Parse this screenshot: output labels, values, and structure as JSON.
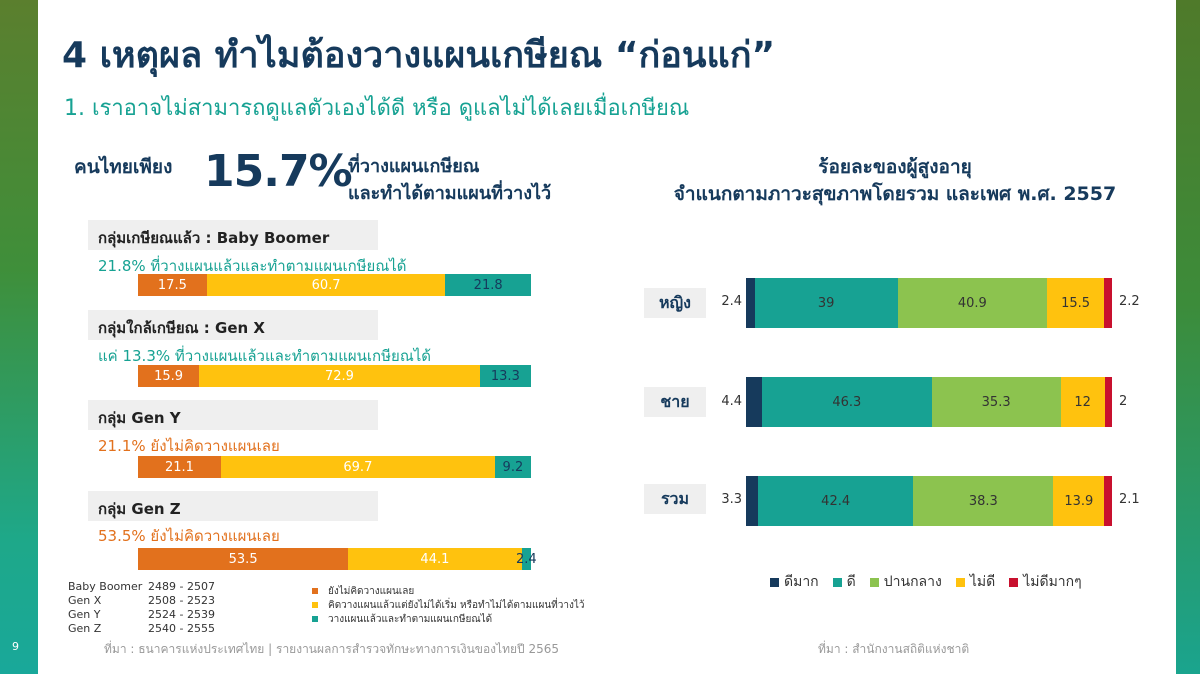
{
  "page_number": "9",
  "title": "4 เหตุผล ทำไมต้องวางแผนเกษียณ “ก่อนแก่”",
  "subtitle": "1. เราอาจไม่สามารถดูแลตัวเองได้ดี หรือ ดูแลไม่ได้เลยเมื่อเกษียณ",
  "stat": {
    "prefix": "คนไทยเพียง",
    "value": "15.7%",
    "line1": "ที่วางแผนเกษียณ",
    "line2": "และทำได้ตามแผนที่วางไว้"
  },
  "colors": {
    "orange": "#e2711d",
    "yellow": "#ffc20e",
    "teal": "#17a293",
    "dark_navy": "#163a5c",
    "green": "#8cc34f",
    "red": "#c8102e"
  },
  "left_chart": {
    "groups": [
      {
        "label": "กลุ่มเกษียณแล้ว : Baby Boomer",
        "note": "21.8% ที่วางแผนแล้วและทำตามแผนเกษียณได้",
        "note_color": "#17a293",
        "values": [
          17.5,
          60.7,
          21.8
        ],
        "labels": [
          "17.5",
          "60.7",
          "21.8"
        ]
      },
      {
        "label": "กลุ่มใกล้เกษียณ : Gen X",
        "note": "แค่ 13.3% ที่วางแผนแล้วและทำตามแผนเกษียณได้",
        "note_color": "#17a293",
        "values": [
          15.9,
          72.9,
          13.3
        ],
        "labels": [
          "15.9",
          "72.9",
          "13.3"
        ]
      },
      {
        "label": "กลุ่ม Gen Y",
        "note": "21.1% ยังไม่คิดวางแผนเลย",
        "note_color": "#e2711d",
        "values": [
          21.1,
          69.7,
          9.2
        ],
        "labels": [
          "21.1",
          "69.7",
          "9.2"
        ]
      },
      {
        "label": "กลุ่ม Gen Z",
        "note": "53.5% ยังไม่คิดวางแผนเลย",
        "note_color": "#e2711d",
        "values": [
          53.5,
          44.1,
          2.4
        ],
        "labels": [
          "53.5",
          "44.1",
          "2.4"
        ]
      }
    ],
    "legend": [
      "ยังไม่คิดวางแผนเลย",
      "คิดวางแผนแล้วแต่ยังไม่ได้เริ่ม หรือทำไม่ได้ตามแผนที่วางไว้",
      "วางแผนแล้วและทำตามแผนเกษียณได้"
    ],
    "generations": [
      {
        "name": "Baby Boomer",
        "years": "2489 - 2507"
      },
      {
        "name": "Gen X",
        "years": "2508 - 2523"
      },
      {
        "name": "Gen Y",
        "years": "2524 - 2539"
      },
      {
        "name": "Gen Z",
        "years": "2540 - 2555"
      }
    ],
    "source": "ที่มา : ธนาคารแห่งประเทศไทย | รายงานผลการสำรวจทักษะทางการเงินของไทยปี 2565"
  },
  "right_chart": {
    "title_line1": "ร้อยละของผู้สูงอายุ",
    "title_line2": "จำแนกตามภาวะสุขภาพโดยรวม และเพศ พ.ศ. 2557",
    "rows": [
      {
        "category": "หญิง",
        "values": [
          2.4,
          39,
          40.9,
          15.5,
          2.2
        ],
        "labels": [
          "2.4",
          "39",
          "40.9",
          "15.5",
          "2.2"
        ]
      },
      {
        "category": "ชาย",
        "values": [
          4.4,
          46.3,
          35.3,
          12,
          2
        ],
        "labels": [
          "4.4",
          "46.3",
          "35.3",
          "12",
          "2"
        ]
      },
      {
        "category": "รวม",
        "values": [
          3.3,
          42.4,
          38.3,
          13.9,
          2.1
        ],
        "labels": [
          "3.3",
          "42.4",
          "38.3",
          "13.9",
          "2.1"
        ]
      }
    ],
    "legend": [
      "ดีมาก",
      "ดี",
      "ปานกลาง",
      "ไม่ดี",
      "ไม่ดีมากๆ"
    ],
    "source": "ที่มา : สำนักงานสถิติแห่งชาติ"
  },
  "chart_data": [
    {
      "type": "bar",
      "stacked": true,
      "orientation": "horizontal",
      "categories": [
        "Baby Boomer",
        "Gen X",
        "Gen Y",
        "Gen Z"
      ],
      "series": [
        {
          "name": "ยังไม่คิดวางแผนเลย",
          "values": [
            17.5,
            15.9,
            21.1,
            53.5
          ]
        },
        {
          "name": "คิดวางแผนแล้วแต่ยังไม่ได้เริ่ม หรือทำไม่ได้ตามแผนที่วางไว้",
          "values": [
            60.7,
            72.9,
            69.7,
            44.1
          ]
        },
        {
          "name": "วางแผนแล้วและทำตามแผนเกษียณได้",
          "values": [
            21.8,
            13.3,
            9.2,
            2.4
          ]
        }
      ]
    },
    {
      "type": "bar",
      "stacked": true,
      "orientation": "horizontal",
      "title": "ร้อยละของผู้สูงอายุ จำแนกตามภาวะสุขภาพโดยรวม และเพศ พ.ศ. 2557",
      "categories": [
        "หญิง",
        "ชาย",
        "รวม"
      ],
      "series": [
        {
          "name": "ดีมาก",
          "values": [
            2.4,
            4.4,
            3.3
          ]
        },
        {
          "name": "ดี",
          "values": [
            39,
            46.3,
            42.4
          ]
        },
        {
          "name": "ปานกลาง",
          "values": [
            40.9,
            35.3,
            38.3
          ]
        },
        {
          "name": "ไม่ดี",
          "values": [
            15.5,
            12,
            13.9
          ]
        },
        {
          "name": "ไม่ดีมากๆ",
          "values": [
            2.2,
            2,
            2.1
          ]
        }
      ]
    }
  ]
}
